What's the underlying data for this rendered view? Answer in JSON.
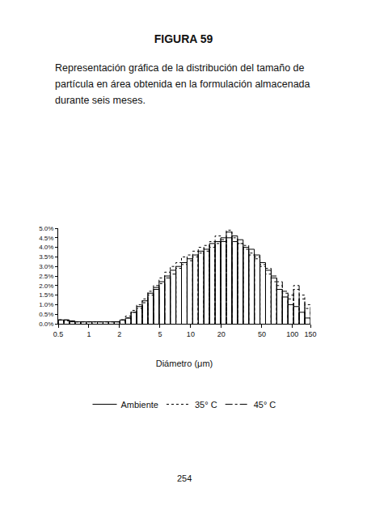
{
  "chart_data": {
    "type": "histogram",
    "title": "FIGURA 59",
    "subtitle": "Representación gráfica de la distribución del tamaño de partícula en área obtenida en la formulación almacenada durante seis meses.",
    "x_label": "Diámetro (μm)",
    "annotations": [
      "254"
    ],
    "log": "x",
    "grid": false,
    "legend": "bottom",
    "xlim": [
      0.5,
      150
    ],
    "xticks": [
      0.5,
      1,
      2,
      5,
      10,
      20,
      50,
      100,
      150
    ],
    "ylim": [
      0,
      5
    ],
    "yticks": [
      {
        "value": 0,
        "label": "0.0%"
      },
      {
        "value": 0.5,
        "label": "0.5%"
      },
      {
        "value": 1,
        "label": "1.0%"
      },
      {
        "value": 1.5,
        "label": "1.5%"
      },
      {
        "value": 2,
        "label": "2.0%"
      },
      {
        "value": 2.5,
        "label": "2.5%"
      },
      {
        "value": 3,
        "label": "3.0%"
      },
      {
        "value": 3.5,
        "label": "3.5%"
      },
      {
        "value": 4,
        "label": "4.0%"
      },
      {
        "value": 4.5,
        "label": "4.5%"
      },
      {
        "value": 5,
        "label": "5.0%"
      }
    ],
    "bins": [
      0.5,
      0.568,
      0.644,
      0.731,
      0.83,
      0.942,
      1.07,
      1.214,
      1.378,
      1.564,
      1.776,
      2.016,
      2.288,
      2.597,
      2.948,
      3.346,
      3.798,
      4.311,
      4.894,
      5.555,
      6.306,
      7.158,
      8.125,
      9.222,
      10.47,
      11.88,
      13.49,
      15.31,
      17.38,
      19.73,
      22.39,
      25.42,
      28.85,
      32.75,
      37.17,
      42.2,
      47.9,
      54.37,
      61.71,
      70.05,
      79.52,
      90.26,
      102.5,
      116.3,
      132.0,
      150
    ],
    "series": [
      {
        "name": "Ambiente",
        "color": "#000000",
        "line_style": "solid",
        "values": [
          0.2,
          0.2,
          0.15,
          0.1,
          0.1,
          0.1,
          0.1,
          0.1,
          0.1,
          0.1,
          0.1,
          0.2,
          0.3,
          0.6,
          0.9,
          1.2,
          1.6,
          1.9,
          2.2,
          2.5,
          2.8,
          3.0,
          3.2,
          3.4,
          3.6,
          3.8,
          3.9,
          4.2,
          4.3,
          4.5,
          4.8,
          4.6,
          4.4,
          4.0,
          3.9,
          3.6,
          3.2,
          2.8,
          2.4,
          1.8,
          1.4,
          1.0,
          0.9,
          0.6,
          0.3
        ]
      },
      {
        "name": "35° C",
        "color": "#000000",
        "line_style": "dot",
        "values": [
          0.2,
          0.15,
          0.15,
          0.1,
          0.1,
          0.1,
          0.1,
          0.1,
          0.1,
          0.1,
          0.1,
          0.2,
          0.4,
          0.7,
          1.0,
          1.3,
          1.7,
          2.0,
          2.4,
          2.7,
          3.0,
          3.2,
          3.5,
          3.6,
          3.8,
          4.0,
          4.1,
          4.3,
          4.6,
          4.4,
          4.9,
          4.5,
          4.2,
          4.1,
          3.7,
          3.4,
          3.0,
          2.6,
          2.2,
          2.0,
          1.6,
          1.3,
          1.8,
          1.5,
          1.0
        ]
      },
      {
        "name": "45° C",
        "color": "#000000",
        "line_style": "dashdot",
        "values": [
          0.2,
          0.2,
          0.1,
          0.1,
          0.1,
          0.1,
          0.1,
          0.1,
          0.1,
          0.1,
          0.1,
          0.2,
          0.3,
          0.6,
          0.8,
          1.1,
          1.5,
          1.8,
          2.1,
          2.4,
          2.6,
          2.9,
          3.1,
          3.3,
          3.5,
          3.7,
          3.8,
          4.0,
          4.2,
          4.3,
          4.5,
          4.3,
          4.2,
          3.9,
          3.6,
          3.5,
          3.1,
          2.9,
          2.5,
          2.2,
          1.7,
          1.5,
          2.0,
          1.3,
          0.8
        ]
      }
    ]
  }
}
